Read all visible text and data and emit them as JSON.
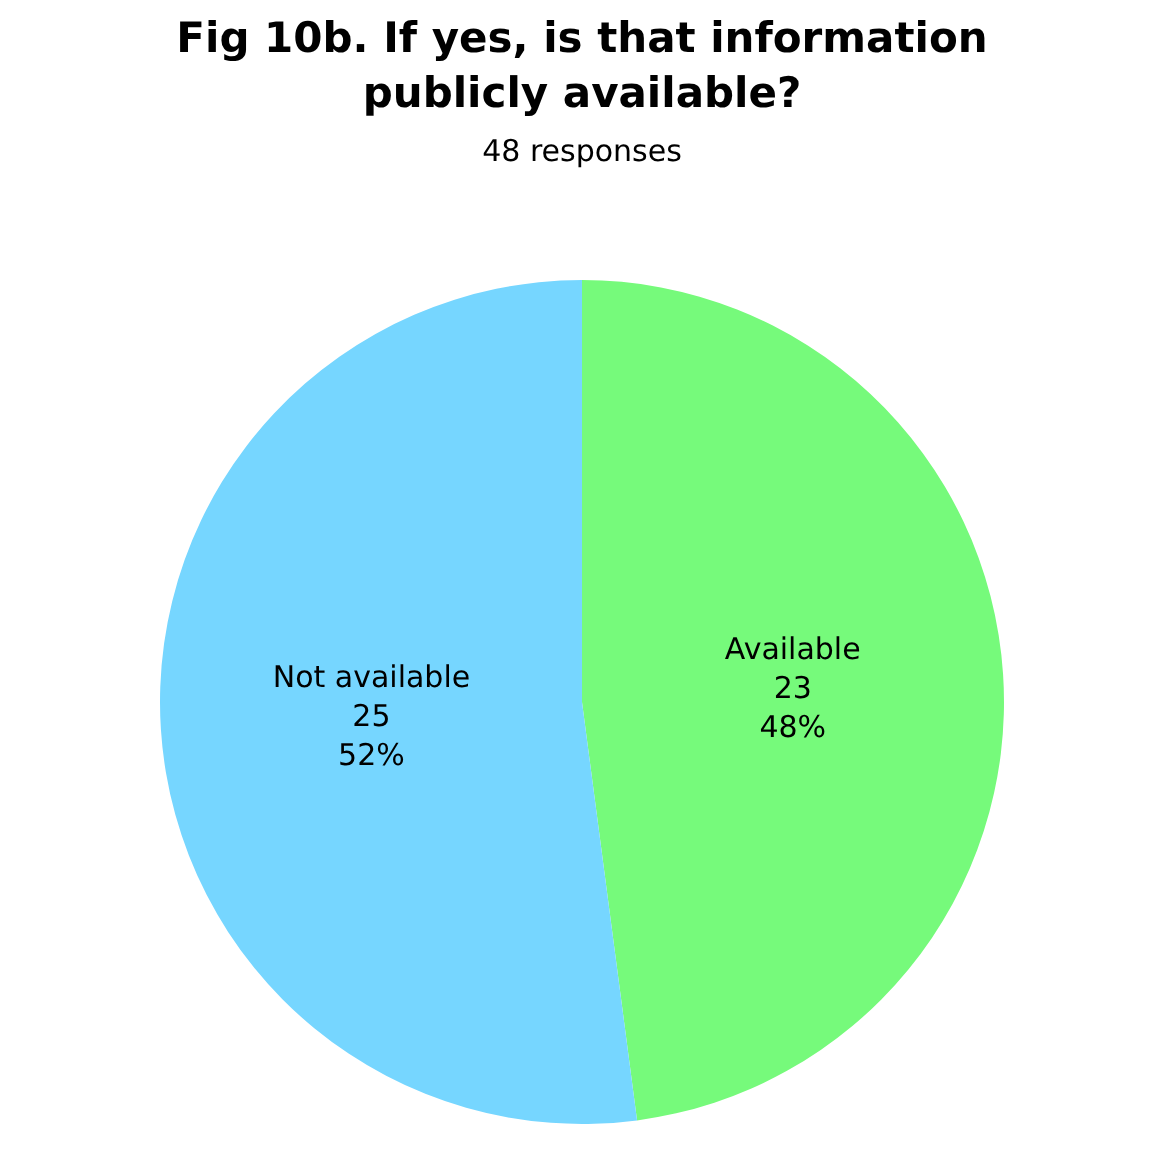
{
  "chart_data": {
    "type": "pie",
    "title": "Fig 10b. If yes, is that information\npublicly available?",
    "subtitle": "48 responses",
    "categories": [
      "Available",
      "Not available"
    ],
    "values": [
      23,
      25
    ],
    "colors": [
      "#76fa7b",
      "#76d6ff"
    ],
    "value_labels": [
      "23\n48%",
      "25\n52%"
    ],
    "legend": false
  }
}
